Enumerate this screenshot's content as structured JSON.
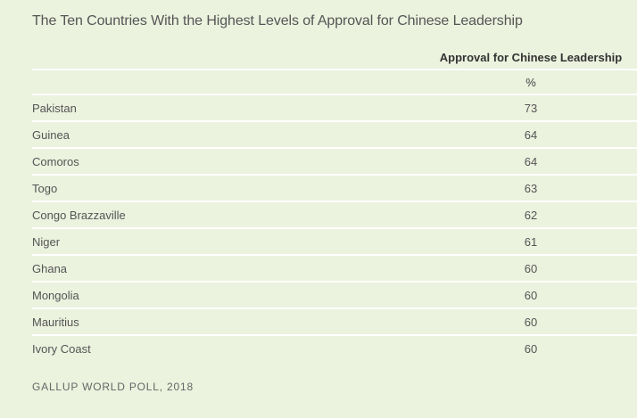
{
  "chart_data": {
    "type": "table",
    "title": "The Ten Countries With the Highest Levels of Approval for Chinese Leadership",
    "column_header": "Approval for Chinese Leadership",
    "unit": "%",
    "rows": [
      {
        "country": "Pakistan",
        "value": 73
      },
      {
        "country": "Guinea",
        "value": 64
      },
      {
        "country": "Comoros",
        "value": 64
      },
      {
        "country": "Togo",
        "value": 63
      },
      {
        "country": "Congo Brazzaville",
        "value": 62
      },
      {
        "country": "Niger",
        "value": 61
      },
      {
        "country": "Ghana",
        "value": 60
      },
      {
        "country": "Mongolia",
        "value": 60
      },
      {
        "country": "Mauritius",
        "value": 60
      },
      {
        "country": "Ivory Coast",
        "value": 60
      }
    ],
    "source": "GALLUP WORLD POLL, 2018"
  },
  "colors": {
    "background": "#ebf2de",
    "rule": "#ffffff"
  }
}
